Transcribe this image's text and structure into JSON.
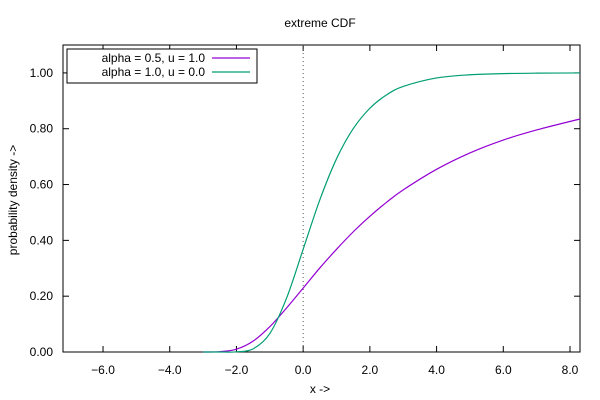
{
  "chart_data": {
    "type": "line",
    "title": "extreme CDF",
    "xlabel": "x ->",
    "ylabel": "probability density ->",
    "xlim": [
      -7.2,
      8.3
    ],
    "ylim": [
      0.0,
      1.1
    ],
    "x_ticks": [
      -6.0,
      -4.0,
      -2.0,
      0.0,
      2.0,
      4.0,
      6.0,
      8.0
    ],
    "x_tick_labels": [
      "−6.0",
      "−4.0",
      "−2.0",
      "0.0",
      "2.0",
      "4.0",
      "6.0",
      "8.0"
    ],
    "y_ticks": [
      0.0,
      0.2,
      0.4,
      0.6,
      0.8,
      1.0
    ],
    "y_tick_labels": [
      "0.00",
      "0.20",
      "0.40",
      "0.60",
      "0.80",
      "1.00"
    ],
    "grid": false,
    "vertical_reference_line_x": 0.0,
    "legend_position": "top-left",
    "series": [
      {
        "name": "alpha = 0.5, u = 1.0",
        "color": "#9400d3",
        "x": [
          -3,
          -2.5,
          -2,
          -1.5,
          -1,
          -0.5,
          0,
          0.5,
          1,
          1.5,
          2,
          2.5,
          3,
          4,
          5,
          6,
          7,
          8.3
        ],
        "values": [
          0.0,
          0.0011,
          0.0101,
          0.039,
          0.0907,
          0.1572,
          0.2288,
          0.3012,
          0.3679,
          0.4304,
          0.4861,
          0.5364,
          0.5809,
          0.6546,
          0.7134,
          0.7595,
          0.7956,
          0.8349
        ]
      },
      {
        "name": "alpha = 1.0, u = 0.0",
        "color": "#009e73",
        "x": [
          -3,
          -2.5,
          -2,
          -1.5,
          -1,
          -0.5,
          0,
          0.5,
          1,
          1.5,
          2,
          2.5,
          3,
          4,
          5,
          6,
          7,
          8.3
        ],
        "values": [
          0.0,
          0.0,
          0.0006,
          0.0113,
          0.066,
          0.1923,
          0.3679,
          0.5452,
          0.6922,
          0.8,
          0.8734,
          0.9212,
          0.9514,
          0.9819,
          0.9933,
          0.9975,
          0.9991,
          0.9998
        ]
      }
    ]
  }
}
